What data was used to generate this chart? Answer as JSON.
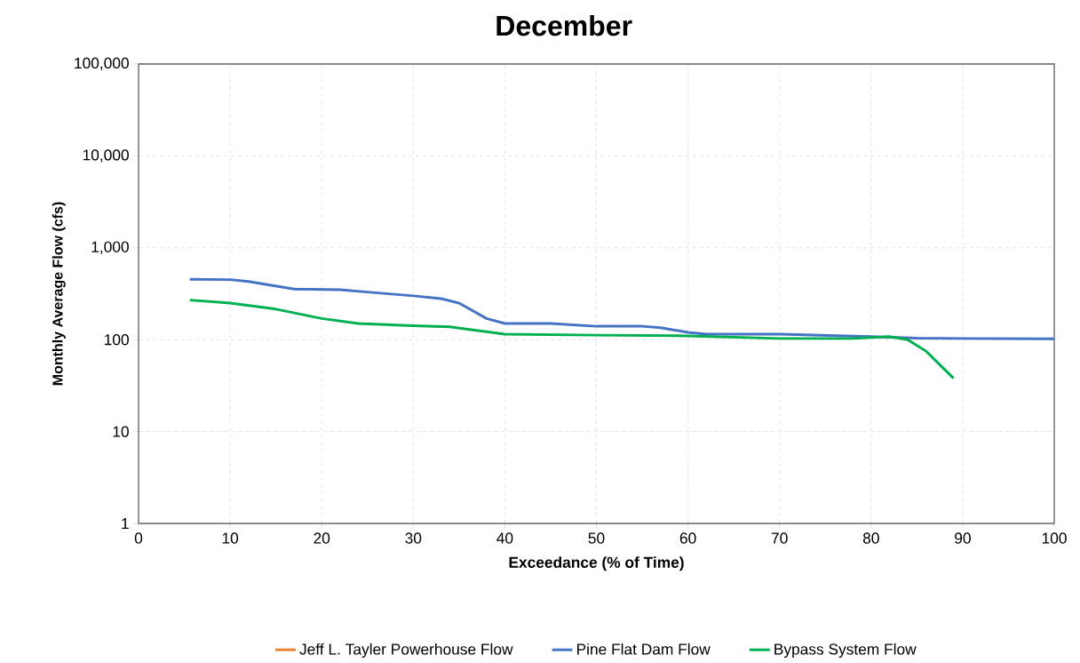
{
  "chart_data": {
    "type": "line",
    "title": "December",
    "xlabel": "Exceedance  (% of Time)",
    "ylabel": "Monthly Average  Flow (cfs)",
    "log": "y",
    "grid": true,
    "legend": "bottom",
    "marker": "none",
    "line_style": "solid",
    "xlim": [
      0,
      100
    ],
    "xticks": [
      0,
      10,
      20,
      30,
      40,
      50,
      60,
      70,
      80,
      90,
      100
    ],
    "ylim": [
      1,
      100000
    ],
    "yticks": [
      1,
      10,
      100,
      {
        "value": 1000,
        "label": "1,000"
      },
      {
        "value": 10000,
        "label": "10,000"
      },
      {
        "value": 100000,
        "label": "100,000"
      }
    ],
    "series": [
      {
        "name": "Jeff L. Tayler Powerhouse Flow",
        "color": "#ed7d31"
      },
      {
        "name": "Pine Flat Dam Flow",
        "color": "#4472c4",
        "x": [
          5.6,
          10,
          12,
          17,
          22,
          25,
          30,
          33,
          35,
          38,
          40,
          45,
          50,
          55,
          57,
          60,
          62,
          70,
          80,
          85,
          90,
          100
        ],
        "values": [
          455,
          450,
          430,
          355,
          350,
          330,
          300,
          280,
          250,
          170,
          150,
          150,
          140,
          140,
          135,
          120,
          115,
          115,
          108,
          104,
          103,
          102
        ]
      },
      {
        "name": "Bypass System Flow",
        "color": "#00b050",
        "x": [
          5.6,
          10,
          15,
          20,
          24,
          30,
          34,
          40,
          50,
          60,
          70,
          78,
          82,
          84,
          86,
          89
        ],
        "values": [
          270,
          250,
          215,
          170,
          150,
          142,
          138,
          115,
          112,
          110,
          103,
          103,
          108,
          100,
          75,
          38
        ]
      }
    ]
  }
}
